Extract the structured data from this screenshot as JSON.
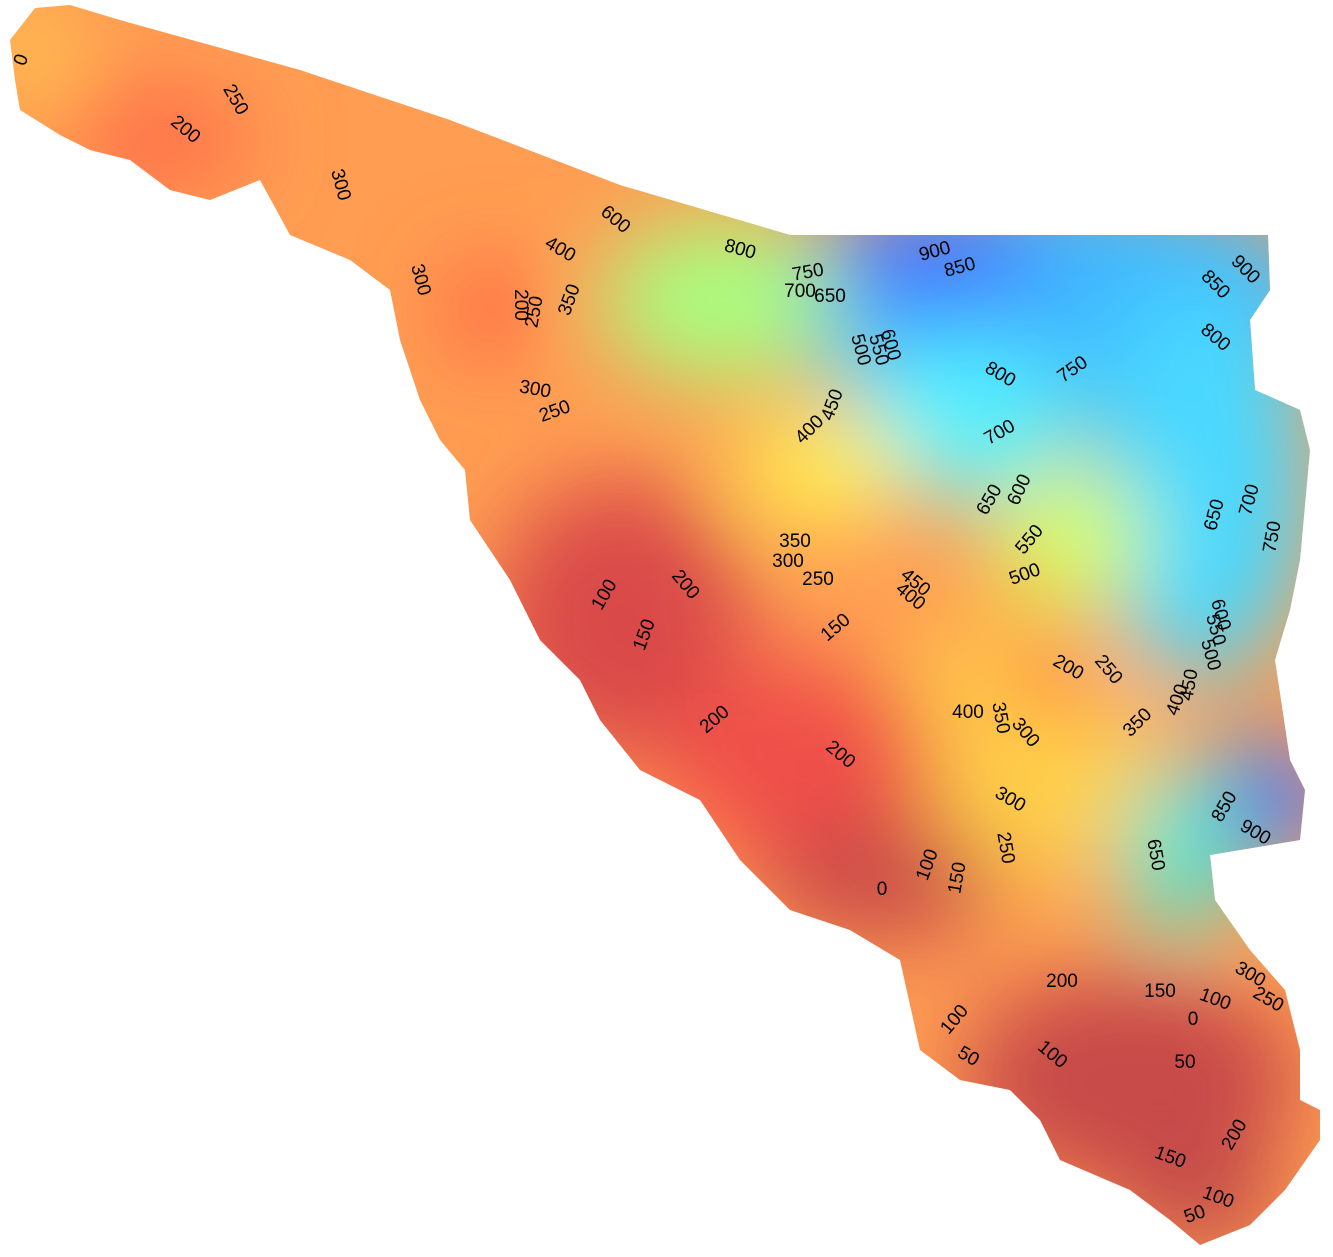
{
  "map": {
    "contour_labels": [
      250,
      200,
      300,
      300,
      200,
      250,
      350,
      400,
      600,
      800,
      900,
      850,
      750,
      700,
      650,
      600,
      550,
      500,
      900,
      850,
      800,
      800,
      750,
      300,
      250,
      450,
      400,
      700,
      650,
      600,
      550,
      500,
      650,
      700,
      750,
      350,
      300,
      250,
      200,
      100,
      150,
      150,
      450,
      400,
      600,
      550,
      500,
      450,
      400,
      200,
      250,
      400,
      350,
      300,
      350,
      200,
      200,
      300,
      850,
      900,
      650,
      250,
      100,
      150,
      0,
      200,
      150,
      100,
      300,
      250,
      0,
      100,
      50,
      100,
      50,
      200,
      150,
      100,
      50,
      0
    ]
  }
}
